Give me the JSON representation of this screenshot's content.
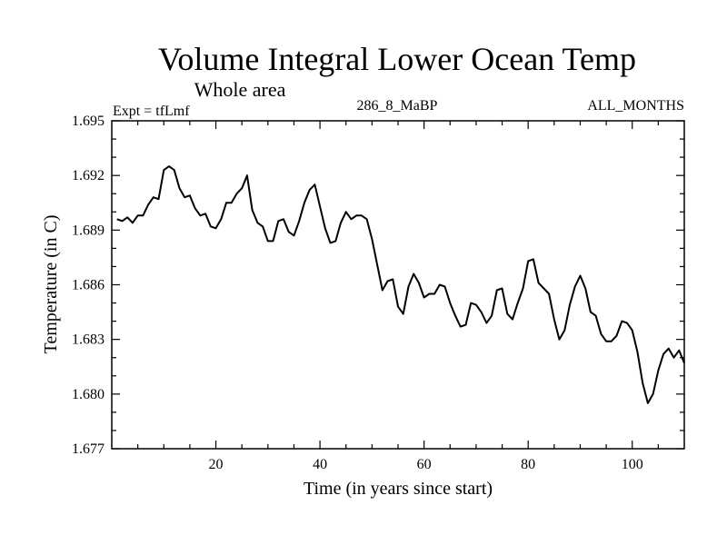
{
  "chart_data": {
    "type": "line",
    "title": "Volume Integral Lower Ocean Temp",
    "subtitle": "Whole area",
    "left_label": "Expt = tfLmf",
    "center_label": "286_8_MaBP",
    "right_label": "ALL_MONTHS",
    "xlabel": "Time (in years since start)",
    "ylabel": "Temperature (in C)",
    "xlim": [
      0,
      110
    ],
    "ylim": [
      1.677,
      1.695
    ],
    "xticks": [
      20,
      40,
      60,
      80,
      100
    ],
    "xtick_labels": [
      "20",
      "40",
      "60",
      "80",
      "100"
    ],
    "yticks": [
      1.677,
      1.68,
      1.683,
      1.686,
      1.689,
      1.692,
      1.695
    ],
    "ytick_labels": [
      "1.677",
      "1.680",
      "1.683",
      "1.686",
      "1.689",
      "1.692",
      "1.695"
    ],
    "grid": false,
    "line_color": "#000000",
    "series": [
      {
        "name": "tfLmf",
        "x": [
          1,
          2,
          3,
          4,
          5,
          6,
          7,
          8,
          9,
          10,
          11,
          12,
          13,
          14,
          15,
          16,
          17,
          18,
          19,
          20,
          21,
          22,
          23,
          24,
          25,
          26,
          27,
          28,
          29,
          30,
          31,
          32,
          33,
          34,
          35,
          36,
          37,
          38,
          39,
          40,
          41,
          42,
          43,
          44,
          45,
          46,
          47,
          48,
          49,
          50,
          51,
          52,
          53,
          54,
          55,
          56,
          57,
          58,
          59,
          60,
          61,
          62,
          63,
          64,
          65,
          66,
          67,
          68,
          69,
          70,
          71,
          72,
          73,
          74,
          75,
          76,
          77,
          78,
          79,
          80,
          81,
          82,
          83,
          84,
          85,
          86,
          87,
          88,
          89,
          90,
          91,
          92,
          93,
          94,
          95,
          96,
          97,
          98,
          99,
          100,
          101,
          102,
          103,
          104,
          105,
          106,
          107,
          108,
          109,
          110
        ],
        "y": [
          1.6896,
          1.6895,
          1.6897,
          1.6894,
          1.6898,
          1.6898,
          1.6904,
          1.6908,
          1.6907,
          1.6923,
          1.6925,
          1.6923,
          1.6913,
          1.6908,
          1.6909,
          1.6902,
          1.6898,
          1.6899,
          1.6892,
          1.6891,
          1.6896,
          1.6905,
          1.6905,
          1.691,
          1.6913,
          1.692,
          1.6901,
          1.6894,
          1.6892,
          1.6884,
          1.6884,
          1.6895,
          1.6896,
          1.6889,
          1.6887,
          1.6895,
          1.6905,
          1.6912,
          1.6915,
          1.6903,
          1.6891,
          1.6883,
          1.6884,
          1.6894,
          1.69,
          1.6896,
          1.6898,
          1.6898,
          1.6896,
          1.6885,
          1.6871,
          1.6857,
          1.6862,
          1.6863,
          1.6848,
          1.6844,
          1.6859,
          1.6866,
          1.6861,
          1.6853,
          1.6855,
          1.6855,
          1.686,
          1.6859,
          1.685,
          1.6843,
          1.6837,
          1.6838,
          1.685,
          1.6849,
          1.6845,
          1.6839,
          1.6843,
          1.6857,
          1.6858,
          1.6844,
          1.6841,
          1.685,
          1.6858,
          1.6873,
          1.6874,
          1.6861,
          1.6858,
          1.6855,
          1.6841,
          1.683,
          1.6835,
          1.6849,
          1.6859,
          1.6865,
          1.6858,
          1.6845,
          1.6843,
          1.6833,
          1.6829,
          1.6829,
          1.6832,
          1.684,
          1.6839,
          1.6835,
          1.6823,
          1.6806,
          1.6795,
          1.68,
          1.6813,
          1.6822,
          1.6825,
          1.682,
          1.6824,
          1.6817
        ]
      }
    ]
  }
}
